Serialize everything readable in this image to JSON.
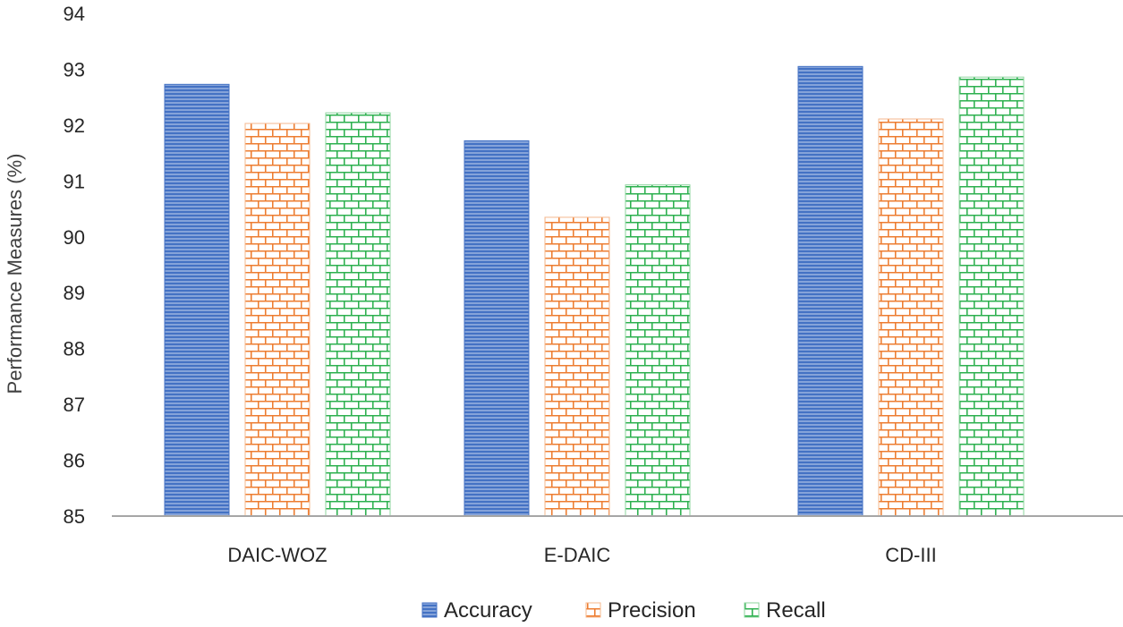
{
  "chart_data": {
    "type": "bar",
    "categories": [
      "DAIC-WOZ",
      "E-DAIC",
      "CD-III"
    ],
    "series": [
      {
        "name": "Accuracy",
        "values": [
          92.73,
          91.72,
          93.05
        ],
        "color": "#4472C4",
        "pattern": "horizontal-lines"
      },
      {
        "name": "Precision",
        "values": [
          92.03,
          90.35,
          92.11
        ],
        "color": "#ED7D31",
        "pattern": "brick"
      },
      {
        "name": "Recall",
        "values": [
          92.22,
          90.93,
          92.86
        ],
        "color": "#2DB04F",
        "pattern": "brick"
      }
    ],
    "title": "",
    "xlabel": "",
    "ylabel": "Performance Measures (%)",
    "ylim": [
      85,
      94
    ],
    "yticks": [
      85,
      86,
      87,
      88,
      89,
      90,
      91,
      92,
      93,
      94
    ],
    "grid": false,
    "legend": "bottom"
  }
}
